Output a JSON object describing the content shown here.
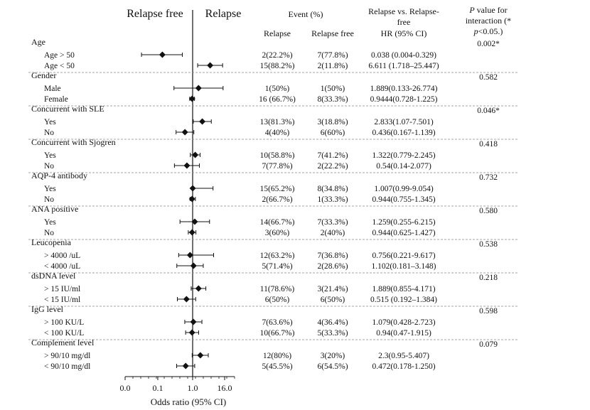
{
  "chart_data": {
    "type": "scatter",
    "subtype": "forest-plot",
    "headers": {
      "left_side": "Relapse free",
      "right_side": "Relapse",
      "event_title": "Event (%)",
      "col_relapse": "Relapse",
      "col_relapse_free": "Relapse free",
      "hr_title_line1": "Relapse vs. Relapse-",
      "hr_title_line2": "free",
      "hr_sub": "HR (95% CI)",
      "p_title_line1_italic": "P",
      "p_title_line1_rest": " value for",
      "p_title_line2": "interaction (*",
      "p_title_line3_italic": "p",
      "p_title_line3_rest": "<0.05.)"
    },
    "xlabel": "Odds ratio (95% CI)",
    "xscale": "log",
    "x_ticks": [
      "0.0",
      "0.1",
      "1.0",
      "16.0"
    ],
    "reference_line": "1.0",
    "groups": [
      {
        "name": "Age",
        "p_interaction": "0.002*",
        "rows": [
          {
            "label": "Age > 50",
            "relapse": "2(22.2%)",
            "relapse_free": "7(77.8%)",
            "hr_text": "0.038 (0.004-0.329)",
            "hr": 0.038,
            "lo": 0.004,
            "hi": 0.329
          },
          {
            "label": "Age < 50",
            "relapse": "15(88.2%)",
            "relapse_free": "2(11.8%)",
            "hr_text": "6.611 (1.718–25.447)",
            "hr": 6.611,
            "lo": 1.718,
            "hi": 25.447
          }
        ]
      },
      {
        "name": "Gender",
        "p_interaction": "0.582",
        "rows": [
          {
            "label": "Male",
            "relapse": "1(50%)",
            "relapse_free": "1(50%)",
            "hr_text": "1.889(0.133-26.774)",
            "hr": 1.889,
            "lo": 0.133,
            "hi": 26.774
          },
          {
            "label": "Female",
            "relapse": "16 (66.7%)",
            "relapse_free": "8(33.3%)",
            "hr_text": "0.9444(0.728-1.225)",
            "hr": 0.9444,
            "lo": 0.728,
            "hi": 1.225
          }
        ]
      },
      {
        "name": "Concurrent with SLE",
        "p_interaction": "0.046*",
        "rows": [
          {
            "label": "Yes",
            "relapse": "13(81.3%)",
            "relapse_free": "3(18.8%)",
            "hr_text": "2.833(1.07-7.501)",
            "hr": 2.833,
            "lo": 1.07,
            "hi": 7.501
          },
          {
            "label": "No",
            "relapse": "4(40%)",
            "relapse_free": "6(60%)",
            "hr_text": "0.436(0.167-1.139)",
            "hr": 0.436,
            "lo": 0.167,
            "hi": 1.139
          }
        ]
      },
      {
        "name": "Concurrent with Sjogren",
        "p_interaction": "0.418",
        "rows": [
          {
            "label": "Yes",
            "relapse": "10(58.8%)",
            "relapse_free": "7(41.2%)",
            "hr_text": "1.322(0.779-2.245)",
            "hr": 1.322,
            "lo": 0.779,
            "hi": 2.245
          },
          {
            "label": "No",
            "relapse": "7(77.8%)",
            "relapse_free": "2(22.2%)",
            "hr_text": "0.54(0.14-2.077)",
            "hr": 0.54,
            "lo": 0.14,
            "hi": 2.077
          }
        ]
      },
      {
        "name": "AQP-4 antibody",
        "p_interaction": "0.732",
        "rows": [
          {
            "label": "Yes",
            "relapse": "15(65.2%)",
            "relapse_free": "8(34.8%)",
            "hr_text": "1.007(0.99-9.054)",
            "hr": 1.007,
            "lo": 0.99,
            "hi": 9.054
          },
          {
            "label": "No",
            "relapse": "2(66.7%)",
            "relapse_free": "1(33.3%)",
            "hr_text": "0.944(0.755-1.345)",
            "hr": 0.944,
            "lo": 0.755,
            "hi": 1.345
          }
        ]
      },
      {
        "name": "ANA positive",
        "p_interaction": "0.580",
        "rows": [
          {
            "label": "Yes",
            "relapse": "14(66.7%)",
            "relapse_free": "7(33.3%)",
            "hr_text": "1.259(0.255-6.215)",
            "hr": 1.259,
            "lo": 0.255,
            "hi": 6.215
          },
          {
            "label": "No",
            "relapse": "3(60%)",
            "relapse_free": "2(40%)",
            "hr_text": "0.944(0.625-1.427)",
            "hr": 0.944,
            "lo": 0.625,
            "hi": 1.427
          }
        ]
      },
      {
        "name": "Leucopenia",
        "p_interaction": "0.538",
        "rows": [
          {
            "label": "> 4000 /uL",
            "relapse": "12(63.2%)",
            "relapse_free": "7(36.8%)",
            "hr_text": "0.756(0.221-9.617)",
            "hr": 0.756,
            "lo": 0.221,
            "hi": 9.617
          },
          {
            "label": "< 4000 /uL",
            "relapse": "5(71.4%)",
            "relapse_free": "2(28.6%)",
            "hr_text": "1.102(0.181–3.148)",
            "hr": 1.102,
            "lo": 0.181,
            "hi": 3.148
          }
        ]
      },
      {
        "name": "dsDNA level",
        "p_interaction": "0.218",
        "rows": [
          {
            "label": "> 15 IU/ml",
            "relapse": "11(78.6%)",
            "relapse_free": "3(21.4%)",
            "hr_text": "1.889(0.855-4.171)",
            "hr": 1.889,
            "lo": 0.855,
            "hi": 4.171
          },
          {
            "label": "< 15 IU/ml",
            "relapse": "6(50%)",
            "relapse_free": "6(50%)",
            "hr_text": "0.515 (0.192–1.384)",
            "hr": 0.515,
            "lo": 0.192,
            "hi": 1.384
          }
        ]
      },
      {
        "name": "IgG level",
        "p_interaction": "0.598",
        "rows": [
          {
            "label": "> 100 KU/L",
            "relapse": "7(63.6%)",
            "relapse_free": "4(36.4%)",
            "hr_text": "1.079(0.428-2.723)",
            "hr": 1.079,
            "lo": 0.428,
            "hi": 2.723
          },
          {
            "label": "< 100 KU/L",
            "relapse": "10(66.7%)",
            "relapse_free": "5(33.3%)",
            "hr_text": "0.94(0.47-1.915)",
            "hr": 0.94,
            "lo": 0.47,
            "hi": 1.915
          }
        ]
      },
      {
        "name": "Complement level",
        "p_interaction": "0.079",
        "rows": [
          {
            "label": "> 90/10 mg/dl",
            "relapse": "12(80%)",
            "relapse_free": "3(20%)",
            "hr_text": "2.3(0.95-5.407)",
            "hr": 2.3,
            "lo": 0.95,
            "hi": 5.407
          },
          {
            "label": "< 90/10 mg/dl",
            "relapse": "5(45.5%)",
            "relapse_free": "6(54.5%)",
            "hr_text": "0.472(0.178-1.250)",
            "hr": 0.472,
            "lo": 0.178,
            "hi": 1.25
          }
        ]
      }
    ]
  }
}
